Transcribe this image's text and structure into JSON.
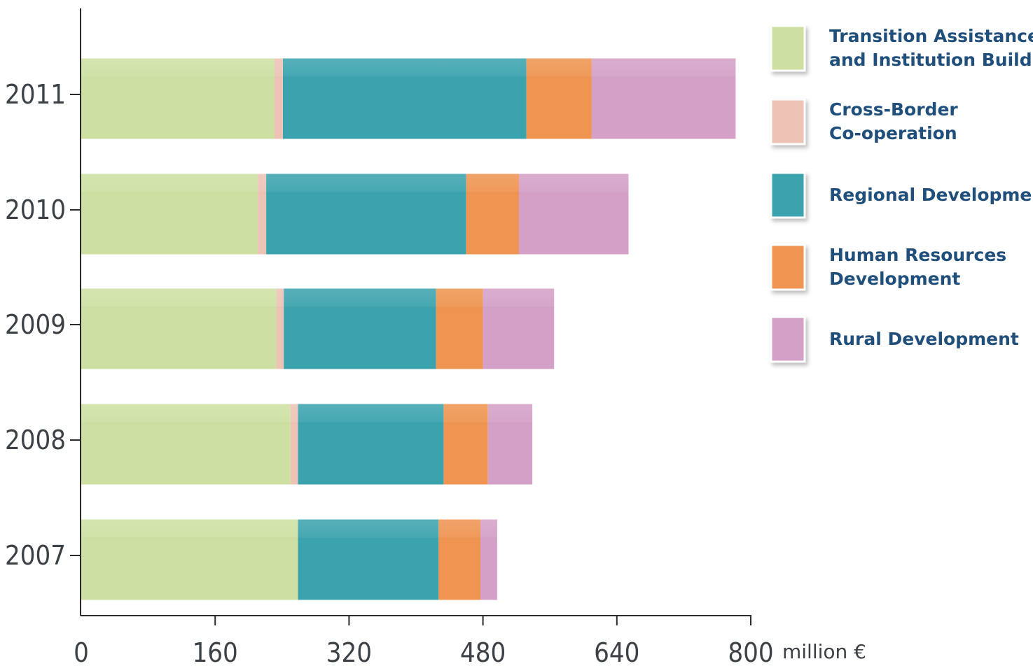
{
  "chart_data": {
    "type": "bar",
    "orientation": "horizontal",
    "stacked": true,
    "categories": [
      "2011",
      "2010",
      "2009",
      "2008",
      "2007"
    ],
    "series": [
      {
        "name": "Transition Assistance and Institution Building",
        "name_lines": [
          "Transition Assistance",
          "and Institution Building"
        ],
        "color": "#cde0a2",
        "values": [
          231,
          211,
          233,
          250,
          259
        ]
      },
      {
        "name": "Cross-Border Co-operation",
        "name_lines": [
          "Cross-Border",
          "Co-operation"
        ],
        "color": "#ecc3b4",
        "values": [
          10,
          10,
          9,
          9,
          0
        ]
      },
      {
        "name": "Regional Development",
        "name_lines": [
          "Regional Development"
        ],
        "color": "#3ba3ae",
        "values": [
          291,
          239,
          182,
          174,
          168
        ]
      },
      {
        "name": "Human Resources Development",
        "name_lines": [
          "Human Resources",
          "Development"
        ],
        "color": "#ef9451",
        "values": [
          78,
          63,
          56,
          53,
          50
        ]
      },
      {
        "name": "Rural Development",
        "name_lines": [
          "Rural Development"
        ],
        "color": "#d4a0c7",
        "values": [
          172,
          131,
          85,
          53,
          20
        ]
      }
    ],
    "xticks": [
      0,
      160,
      320,
      480,
      640,
      800
    ],
    "xlim": [
      0,
      800
    ],
    "unit_label": "million €",
    "title": "",
    "xlabel": "",
    "ylabel": "",
    "grid": false,
    "legend_position": "right"
  }
}
